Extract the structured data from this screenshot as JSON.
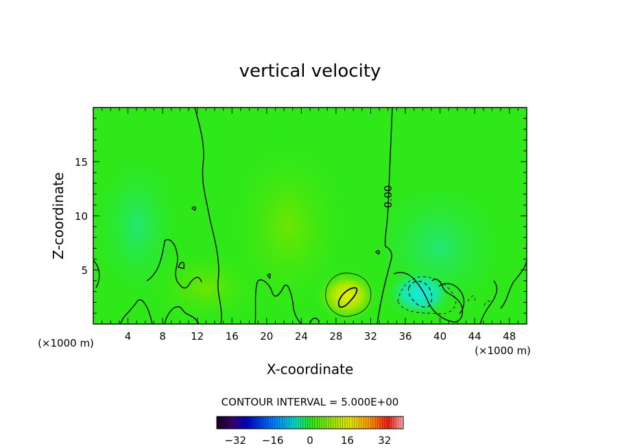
{
  "chart_data": {
    "type": "heatmap",
    "title": "vertical velocity",
    "xlabel": "X-coordinate",
    "ylabel": "Z-coordinate",
    "x_unit": "(×1000 m)",
    "y_unit": "(×1000 m)",
    "xlim": [
      0,
      50
    ],
    "ylim": [
      0,
      20
    ],
    "x_ticks": [
      4,
      8,
      12,
      16,
      20,
      24,
      28,
      32,
      36,
      40,
      44,
      48
    ],
    "y_ticks": [
      5,
      10,
      15
    ],
    "contour_label": "0.00",
    "contour_interval_text": "CONTOUR INTERVAL = 5.000E+00",
    "colorbar": {
      "range": [
        -40,
        40
      ],
      "ticks": [
        -32,
        -16,
        0,
        16,
        32
      ]
    },
    "background_color": "#2ee819",
    "features": [
      {
        "kind": "updraft",
        "x": 29.5,
        "z": 2.5,
        "value": 12
      },
      {
        "kind": "downdraft",
        "x": 38.5,
        "z": 2.8,
        "value": -10
      },
      {
        "kind": "weak-updraft",
        "x": 22.5,
        "z": 8,
        "value": 3
      }
    ]
  }
}
